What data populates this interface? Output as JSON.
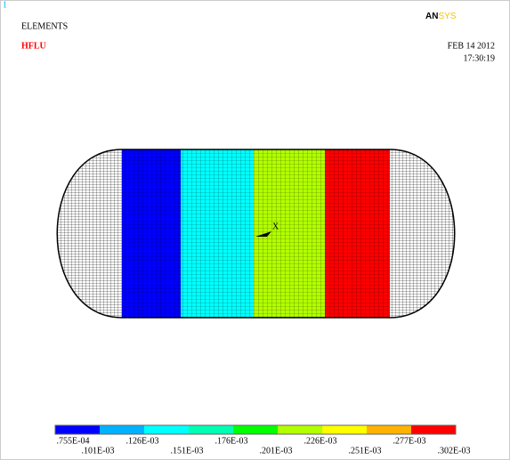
{
  "window": {
    "number": "1",
    "logo_an": "AN",
    "logo_sys": "SYS",
    "label": "ELEMENTS",
    "result": "HFLU",
    "date": "FEB 14 2012",
    "time": "17:30:19",
    "marker": "X"
  },
  "legend": {
    "colors": [
      "#0000ff",
      "#00b2ff",
      "#00ffff",
      "#00ffb2",
      "#00ff00",
      "#b2ff00",
      "#ffff00",
      "#ffb200",
      "#ff0000"
    ],
    "labels": [
      ".755E-04",
      ".101E-03",
      ".126E-03",
      ".151E-03",
      ".176E-03",
      ".201E-03",
      ".226E-03",
      ".251E-03",
      ".277E-03",
      ".302E-03"
    ]
  }
}
